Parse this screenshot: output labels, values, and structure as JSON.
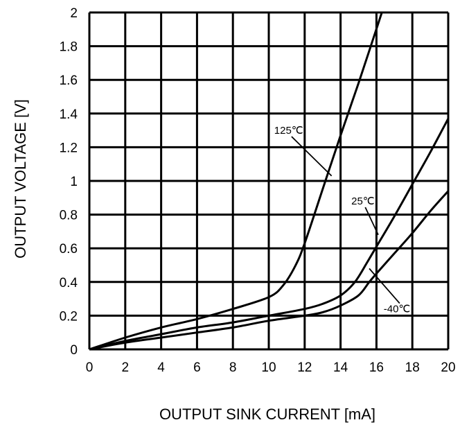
{
  "chart_data": {
    "type": "line",
    "xlabel": "OUTPUT SINK CURRENT [mA]",
    "ylabel": "OUTPUT VOLTAGE [V]",
    "xlim": [
      0,
      20
    ],
    "ylim": [
      0,
      2
    ],
    "x_ticks": [
      "0",
      "2",
      "4",
      "6",
      "8",
      "10",
      "12",
      "14",
      "16",
      "18",
      "20"
    ],
    "y_ticks": [
      "0",
      "0.2",
      "0.4",
      "0.6",
      "0.8",
      "1",
      "1.2",
      "1.4",
      "1.6",
      "1.8",
      "2"
    ],
    "grid": true,
    "series": [
      {
        "name": "125℃",
        "x": [
          0,
          2,
          4,
          6,
          8,
          10,
          10.8,
          11.5,
          12,
          13,
          14,
          15,
          16.3
        ],
        "y": [
          0,
          0.07,
          0.13,
          0.18,
          0.24,
          0.31,
          0.38,
          0.5,
          0.63,
          0.95,
          1.27,
          1.58,
          2.0
        ]
      },
      {
        "name": "25℃",
        "x": [
          0,
          2,
          4,
          6,
          8,
          10,
          12,
          13,
          14,
          14.8,
          15.5,
          16,
          17,
          18,
          19,
          20
        ],
        "y": [
          0,
          0.05,
          0.09,
          0.13,
          0.16,
          0.2,
          0.24,
          0.27,
          0.32,
          0.4,
          0.52,
          0.61,
          0.79,
          0.98,
          1.17,
          1.37
        ]
      },
      {
        "name": "-40℃",
        "x": [
          0,
          2,
          4,
          6,
          8,
          10,
          12,
          13,
          14,
          15,
          15.6,
          16,
          17,
          18,
          19,
          20
        ],
        "y": [
          0,
          0.04,
          0.07,
          0.1,
          0.13,
          0.17,
          0.2,
          0.22,
          0.26,
          0.32,
          0.4,
          0.45,
          0.57,
          0.69,
          0.82,
          0.94
        ]
      }
    ],
    "annotations": [
      {
        "text": "125℃",
        "label_at": [
          10.3,
          1.28
        ],
        "pointer_to": [
          13.5,
          1.03
        ]
      },
      {
        "text": "25℃",
        "label_at": [
          14.6,
          0.86
        ],
        "pointer_to": [
          16.1,
          0.68
        ]
      },
      {
        "text": "-40℃",
        "label_at": [
          16.4,
          0.22
        ],
        "pointer_to": [
          15.6,
          0.48
        ]
      }
    ]
  }
}
